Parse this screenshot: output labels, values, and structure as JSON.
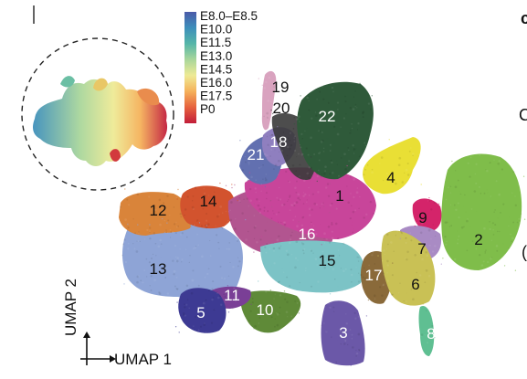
{
  "legend": {
    "stages": [
      "E8.0–E8.5",
      "E10.0",
      "E11.5",
      "E13.0",
      "E14.5",
      "E16.0",
      "E17.5",
      "P0"
    ],
    "colors": [
      "#4a5aa8",
      "#3d8fbb",
      "#55b6a8",
      "#a9d69b",
      "#eeea95",
      "#f5b15a",
      "#e6623e",
      "#c21d3a"
    ]
  },
  "axes": {
    "x_label": "UMAP 1",
    "y_label": "UMAP 2"
  },
  "edge_fragments": {
    "top_right": "c",
    "mid_right": "C",
    "lower_right": "("
  },
  "clusters": [
    {
      "id": "1",
      "label": "1",
      "color": "#c8459a",
      "label_color": "#111111"
    },
    {
      "id": "2",
      "label": "2",
      "color": "#7fbd4a",
      "label_color": "#111111"
    },
    {
      "id": "3",
      "label": "3",
      "color": "#6b58a8",
      "label_color": "#ffffff"
    },
    {
      "id": "4",
      "label": "4",
      "color": "#e9df35",
      "label_color": "#111111"
    },
    {
      "id": "5",
      "label": "5",
      "color": "#3d3a93",
      "label_color": "#ffffff"
    },
    {
      "id": "6",
      "label": "6",
      "color": "#c9c155",
      "label_color": "#111111"
    },
    {
      "id": "7",
      "label": "7",
      "color": "#a98bc4",
      "label_color": "#111111"
    },
    {
      "id": "8",
      "label": "8",
      "color": "#5fbf92",
      "label_color": "#ffffff"
    },
    {
      "id": "9",
      "label": "9",
      "color": "#d4246a",
      "label_color": "#111111"
    },
    {
      "id": "10",
      "label": "10",
      "color": "#5f8a38",
      "label_color": "#ffffff"
    },
    {
      "id": "11",
      "label": "11",
      "color": "#7a3f96",
      "label_color": "#ffffff"
    },
    {
      "id": "12",
      "label": "12",
      "color": "#d9843a",
      "label_color": "#111111"
    },
    {
      "id": "13",
      "label": "13",
      "color": "#8ea4d6",
      "label_color": "#111111"
    },
    {
      "id": "14",
      "label": "14",
      "color": "#d2532e",
      "label_color": "#111111"
    },
    {
      "id": "15",
      "label": "15",
      "color": "#7cc3c6",
      "label_color": "#111111"
    },
    {
      "id": "16",
      "label": "16",
      "color": "#b25590",
      "label_color": "#ffffff"
    },
    {
      "id": "17",
      "label": "17",
      "color": "#8a6a3a",
      "label_color": "#ffffff"
    },
    {
      "id": "18",
      "label": "18",
      "color": "#8f7fbf",
      "label_color": "#ffffff"
    },
    {
      "id": "19",
      "label": "19",
      "color": "#d9a3bf",
      "label_color": "#111111"
    },
    {
      "id": "20",
      "label": "20",
      "color": "#3a3a3a",
      "label_color": "#111111"
    },
    {
      "id": "21",
      "label": "21",
      "color": "#6270b0",
      "label_color": "#ffffff"
    },
    {
      "id": "22",
      "label": "22",
      "color": "#2f5a3a",
      "label_color": "#ffffff"
    }
  ]
}
